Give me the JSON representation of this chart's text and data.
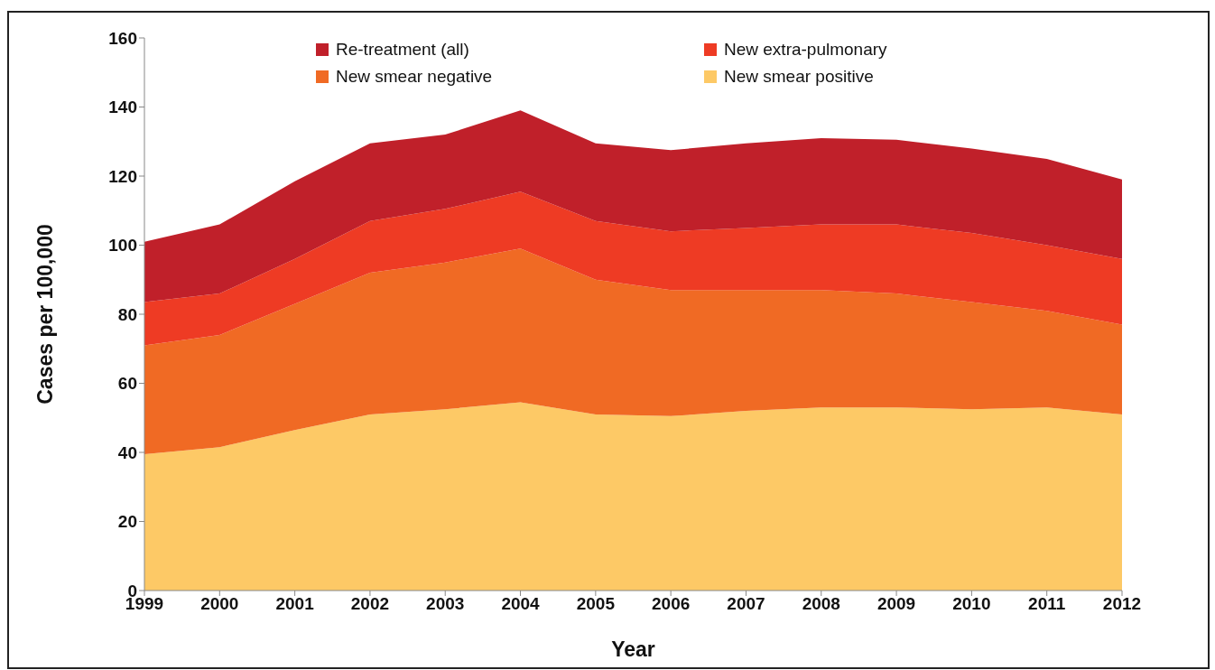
{
  "chart_data": {
    "type": "area",
    "stacked": true,
    "xlabel": "Year",
    "ylabel": "Cases per 100,000",
    "categories": [
      "1999",
      "2000",
      "2001",
      "2002",
      "2003",
      "2004",
      "2005",
      "2006",
      "2007",
      "2008",
      "2009",
      "2010",
      "2011",
      "2012"
    ],
    "series": [
      {
        "name": "New smear positive",
        "color": "#fdc966",
        "values": [
          39.5,
          41.5,
          46.5,
          51,
          52.5,
          54.5,
          51,
          50.5,
          52,
          53,
          53,
          52.5,
          53,
          51
        ]
      },
      {
        "name": "New smear negative",
        "color": "#f06a24",
        "values": [
          31.5,
          32.5,
          36.5,
          41,
          42.5,
          44.5,
          39,
          36.5,
          35,
          34,
          33,
          31,
          28,
          26
        ]
      },
      {
        "name": "New extra-pulmonary",
        "color": "#ee3b24",
        "values": [
          12.5,
          12,
          13,
          15,
          15.5,
          16.5,
          17,
          17,
          18,
          19,
          20,
          20,
          19,
          19
        ]
      },
      {
        "name": "Re-treatment (all)",
        "color": "#c0202a",
        "values": [
          17.5,
          20,
          22.5,
          22.5,
          21.5,
          23.5,
          22.5,
          23.5,
          24.5,
          25,
          24.5,
          24.5,
          25,
          23
        ]
      }
    ],
    "ylim": [
      0,
      160
    ],
    "yticks": [
      0,
      20,
      40,
      60,
      80,
      100,
      120,
      140,
      160
    ],
    "grid": false,
    "legend": "top"
  }
}
